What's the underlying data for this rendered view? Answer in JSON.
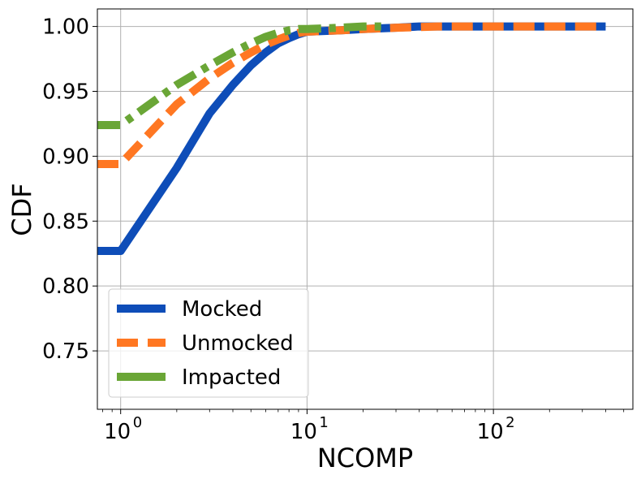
{
  "chart_data": {
    "type": "line",
    "xscale": "log",
    "xlabel": "NCOMP",
    "ylabel": "CDF",
    "xlim": [
      0.75,
      560
    ],
    "ylim": [
      0.705,
      1.0135
    ],
    "grid": true,
    "legend_position": "bottom-left",
    "x_ticks": [
      {
        "value": 1,
        "base": "10",
        "exp": "0"
      },
      {
        "value": 10,
        "base": "10",
        "exp": "1"
      },
      {
        "value": 100,
        "base": "10",
        "exp": "2"
      }
    ],
    "y_ticks": [
      {
        "value": 0.75,
        "label": "0.75"
      },
      {
        "value": 0.8,
        "label": "0.80"
      },
      {
        "value": 0.85,
        "label": "0.85"
      },
      {
        "value": 0.9,
        "label": "0.90"
      },
      {
        "value": 0.95,
        "label": "0.95"
      },
      {
        "value": 1.0,
        "label": "1.00"
      }
    ],
    "series": [
      {
        "name": "Mocked",
        "color": "#0e4db8",
        "style": "solid",
        "x": [
          0.75,
          1,
          2,
          3,
          4,
          5,
          6,
          7,
          8,
          9,
          10,
          15,
          20,
          30,
          40,
          50,
          100,
          400
        ],
        "y": [
          0.827,
          0.827,
          0.891,
          0.933,
          0.955,
          0.97,
          0.98,
          0.987,
          0.991,
          0.994,
          0.996,
          0.997,
          0.998,
          0.999,
          1.0,
          1.0,
          1.0,
          1.0
        ]
      },
      {
        "name": "Unmocked",
        "color": "#ff7722",
        "style": "dashed",
        "x": [
          0.75,
          1,
          2,
          3,
          4,
          5,
          6,
          7,
          8,
          9,
          10,
          15,
          20,
          30,
          50,
          100,
          400
        ],
        "y": [
          0.894,
          0.894,
          0.94,
          0.96,
          0.972,
          0.98,
          0.986,
          0.99,
          0.993,
          0.995,
          0.996,
          0.997,
          0.998,
          0.999,
          1.0,
          1.0,
          1.0
        ]
      },
      {
        "name": "Impacted",
        "color": "#6aa636",
        "style": "dashdot",
        "x": [
          0.75,
          1,
          2,
          3,
          4,
          5,
          6,
          7,
          8,
          9,
          10,
          15,
          20,
          25
        ],
        "y": [
          0.924,
          0.924,
          0.955,
          0.97,
          0.98,
          0.987,
          0.992,
          0.995,
          0.997,
          0.998,
          0.998,
          0.999,
          1.0,
          1.0
        ]
      }
    ]
  }
}
